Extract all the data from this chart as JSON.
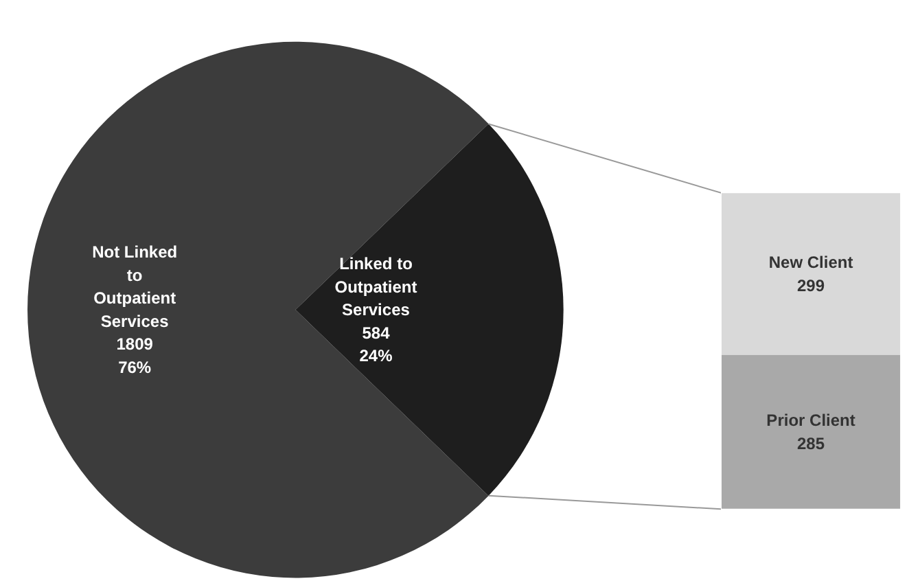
{
  "chart_data": [
    {
      "type": "pie",
      "categories": [
        "Not Linked to Outpatient Services",
        "Linked to Outpatient Services"
      ],
      "values": [
        1809,
        584
      ],
      "colors": [
        "#3c3c3c",
        "#1e1e1e"
      ],
      "value_labels": [
        "1809\n76%",
        "584\n24%"
      ]
    },
    {
      "type": "bar",
      "stacked": true,
      "categories": [
        null
      ],
      "tick_labels": false,
      "data_labels": true,
      "series": [
        {
          "name": "Prior Client",
          "color": "#a9a9a9",
          "values": [
            285
          ]
        },
        {
          "name": "New Client",
          "color": "#d9d9d9",
          "values": [
            299
          ]
        }
      ]
    }
  ]
}
